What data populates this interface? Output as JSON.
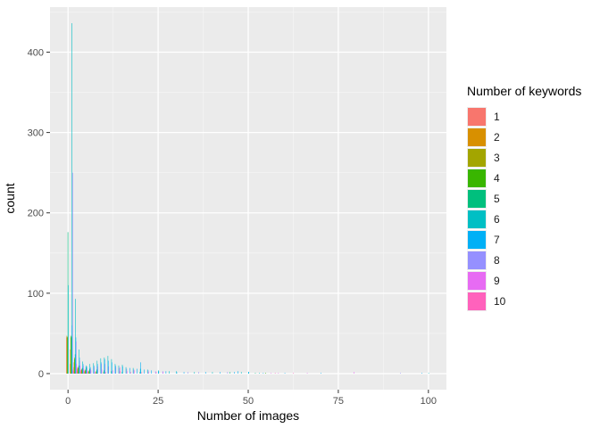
{
  "chart_data": {
    "type": "bar",
    "xlabel": "Number of images",
    "ylabel": "count",
    "xlim": [
      -5,
      105
    ],
    "ylim": [
      -20,
      456
    ],
    "x_ticks": [
      0,
      25,
      50,
      75,
      100
    ],
    "y_ticks": [
      0,
      100,
      200,
      300,
      400
    ],
    "grid": true,
    "legend_position": "right",
    "legend_title": "Number of keywords",
    "series": [
      {
        "name": "1",
        "color": "#F8766D",
        "points": [
          [
            0,
            45
          ],
          [
            1,
            12
          ],
          [
            2,
            8
          ],
          [
            3,
            4
          ],
          [
            4,
            2
          ],
          [
            5,
            2
          ]
        ]
      },
      {
        "name": "2",
        "color": "#D89000",
        "points": [
          [
            0,
            47
          ],
          [
            1,
            30
          ],
          [
            2,
            14
          ],
          [
            3,
            6
          ],
          [
            4,
            4
          ],
          [
            5,
            3
          ],
          [
            6,
            2
          ]
        ]
      },
      {
        "name": "3",
        "color": "#A3A500",
        "points": [
          [
            0,
            46
          ],
          [
            1,
            45
          ],
          [
            2,
            20
          ],
          [
            3,
            8
          ],
          [
            4,
            5
          ],
          [
            5,
            4
          ],
          [
            6,
            3
          ],
          [
            8,
            2
          ]
        ]
      },
      {
        "name": "4",
        "color": "#39B600",
        "points": [
          [
            0,
            45
          ],
          [
            1,
            47
          ],
          [
            2,
            18
          ],
          [
            3,
            7
          ],
          [
            4,
            6
          ],
          [
            5,
            5
          ],
          [
            6,
            4
          ],
          [
            8,
            3
          ],
          [
            10,
            2
          ],
          [
            55,
            1
          ]
        ]
      },
      {
        "name": "5",
        "color": "#00BF7D",
        "points": [
          [
            0,
            176
          ],
          [
            1,
            46
          ],
          [
            2,
            24
          ],
          [
            3,
            10
          ],
          [
            4,
            7
          ],
          [
            5,
            8
          ],
          [
            6,
            6
          ],
          [
            8,
            5
          ],
          [
            10,
            4
          ],
          [
            12,
            3
          ],
          [
            15,
            2
          ],
          [
            20,
            2
          ],
          [
            45,
            2
          ],
          [
            52,
            1
          ]
        ]
      },
      {
        "name": "6",
        "color": "#00BFC4",
        "points": [
          [
            0,
            110
          ],
          [
            1,
            436
          ],
          [
            2,
            93
          ],
          [
            3,
            30
          ],
          [
            4,
            15
          ],
          [
            5,
            10
          ],
          [
            6,
            12
          ],
          [
            7,
            13
          ],
          [
            8,
            16
          ],
          [
            9,
            19
          ],
          [
            10,
            20
          ],
          [
            11,
            22
          ],
          [
            12,
            18
          ],
          [
            13,
            12
          ],
          [
            14,
            10
          ],
          [
            15,
            11
          ],
          [
            16,
            8
          ],
          [
            18,
            7
          ],
          [
            20,
            6
          ],
          [
            22,
            5
          ],
          [
            25,
            4
          ],
          [
            28,
            3
          ],
          [
            30,
            3
          ],
          [
            35,
            2
          ],
          [
            40,
            2
          ],
          [
            48,
            2
          ],
          [
            50,
            2
          ],
          [
            53,
            1
          ],
          [
            100,
            1
          ]
        ]
      },
      {
        "name": "7",
        "color": "#00B0F6",
        "points": [
          [
            1,
            60
          ],
          [
            2,
            45
          ],
          [
            3,
            20
          ],
          [
            4,
            12
          ],
          [
            5,
            9
          ],
          [
            6,
            8
          ],
          [
            7,
            10
          ],
          [
            8,
            12
          ],
          [
            9,
            14
          ],
          [
            10,
            18
          ],
          [
            11,
            16
          ],
          [
            12,
            14
          ],
          [
            13,
            10
          ],
          [
            15,
            9
          ],
          [
            17,
            7
          ],
          [
            19,
            6
          ],
          [
            20,
            14
          ],
          [
            21,
            5
          ],
          [
            23,
            4
          ],
          [
            25,
            3
          ],
          [
            27,
            3
          ],
          [
            30,
            2
          ],
          [
            32,
            2
          ],
          [
            38,
            2
          ],
          [
            42,
            2
          ],
          [
            46,
            2
          ],
          [
            47,
            3
          ],
          [
            50,
            2
          ],
          [
            54,
            1
          ],
          [
            60,
            1
          ],
          [
            70,
            1
          ],
          [
            98,
            1
          ]
        ]
      },
      {
        "name": "8",
        "color": "#9590FF",
        "points": [
          [
            1,
            250
          ],
          [
            2,
            40
          ],
          [
            3,
            16
          ],
          [
            4,
            10
          ],
          [
            5,
            7
          ],
          [
            6,
            6
          ],
          [
            7,
            8
          ],
          [
            8,
            9
          ],
          [
            9,
            12
          ],
          [
            10,
            12
          ],
          [
            11,
            9
          ],
          [
            13,
            8
          ],
          [
            14,
            7
          ],
          [
            16,
            6
          ],
          [
            18,
            5
          ],
          [
            22,
            4
          ],
          [
            24,
            3
          ],
          [
            26,
            3
          ],
          [
            33,
            2
          ],
          [
            36,
            2
          ],
          [
            44,
            2
          ],
          [
            92,
            1
          ]
        ]
      },
      {
        "name": "9",
        "color": "#E76BF3",
        "points": [
          [
            1,
            5
          ],
          [
            2,
            12
          ],
          [
            3,
            10
          ],
          [
            4,
            6
          ],
          [
            5,
            4
          ],
          [
            6,
            4
          ],
          [
            7,
            3
          ],
          [
            9,
            5
          ],
          [
            12,
            4
          ],
          [
            14,
            8
          ],
          [
            16,
            3
          ],
          [
            18,
            4
          ],
          [
            22,
            2
          ],
          [
            26,
            2
          ],
          [
            56,
            1
          ],
          [
            58,
            1
          ],
          [
            66,
            1
          ],
          [
            79,
            2
          ]
        ]
      },
      {
        "name": "10",
        "color": "#FF62BC",
        "points": [
          [
            1,
            3
          ],
          [
            2,
            8
          ],
          [
            3,
            5
          ],
          [
            4,
            4
          ],
          [
            5,
            3
          ],
          [
            7,
            2
          ],
          [
            10,
            2
          ],
          [
            14,
            3
          ],
          [
            17,
            2
          ],
          [
            20,
            2
          ],
          [
            24,
            2
          ],
          [
            57,
            1
          ],
          [
            62,
            1
          ]
        ]
      }
    ]
  }
}
